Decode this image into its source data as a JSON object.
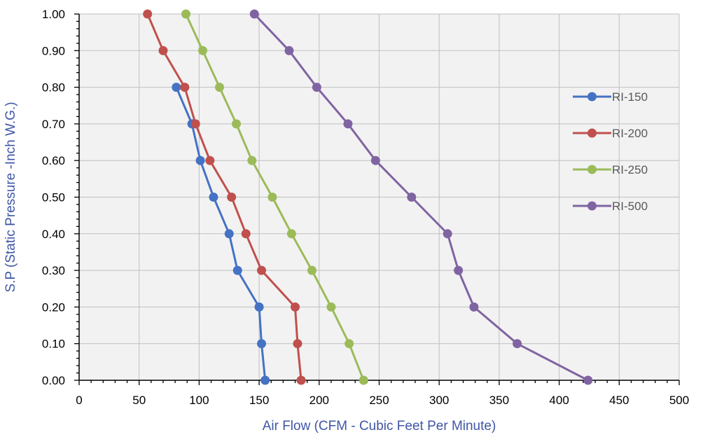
{
  "chart_data": {
    "type": "line",
    "xlabel": "Air Flow (CFM - Cubic Feet Per Minute)",
    "ylabel": "S.P (Static Pressure -Inch W.G.)",
    "xlim": [
      0,
      500
    ],
    "ylim": [
      0,
      1
    ],
    "x_ticks": [
      "0",
      "50",
      "100",
      "150",
      "200",
      "250",
      "300",
      "350",
      "400",
      "450",
      "500"
    ],
    "y_ticks": [
      "0.00",
      "0.10",
      "0.20",
      "0.30",
      "0.40",
      "0.50",
      "0.60",
      "0.70",
      "0.80",
      "0.90",
      "1.00"
    ],
    "grid": true,
    "legend_position": "right",
    "series": [
      {
        "name": "RI-150",
        "color": "#4472c4",
        "points": [
          [
            155,
            0.0
          ],
          [
            152,
            0.1
          ],
          [
            150,
            0.2
          ],
          [
            132,
            0.3
          ],
          [
            125,
            0.4
          ],
          [
            112,
            0.5
          ],
          [
            101,
            0.6
          ],
          [
            94,
            0.7
          ],
          [
            81,
            0.8
          ]
        ]
      },
      {
        "name": "RI-200",
        "color": "#c0504d",
        "points": [
          [
            185,
            0.0
          ],
          [
            182,
            0.1
          ],
          [
            180,
            0.2
          ],
          [
            152,
            0.3
          ],
          [
            139,
            0.4
          ],
          [
            127,
            0.5
          ],
          [
            109,
            0.6
          ],
          [
            97,
            0.7
          ],
          [
            88,
            0.8
          ],
          [
            70,
            0.9
          ],
          [
            57,
            1.0
          ]
        ]
      },
      {
        "name": "RI-250",
        "color": "#9bbb59",
        "points": [
          [
            237,
            0.0
          ],
          [
            225,
            0.1
          ],
          [
            210,
            0.2
          ],
          [
            194,
            0.3
          ],
          [
            177,
            0.4
          ],
          [
            161,
            0.5
          ],
          [
            144,
            0.6
          ],
          [
            131,
            0.7
          ],
          [
            117,
            0.8
          ],
          [
            103,
            0.9
          ],
          [
            89,
            1.0
          ]
        ]
      },
      {
        "name": "RI-500",
        "color": "#8064a2",
        "points": [
          [
            424,
            0.0
          ],
          [
            365,
            0.1
          ],
          [
            329,
            0.2
          ],
          [
            316,
            0.3
          ],
          [
            307,
            0.4
          ],
          [
            277,
            0.5
          ],
          [
            247,
            0.6
          ],
          [
            224,
            0.7
          ],
          [
            198,
            0.8
          ],
          [
            175,
            0.9
          ],
          [
            146,
            1.0
          ]
        ]
      }
    ]
  }
}
